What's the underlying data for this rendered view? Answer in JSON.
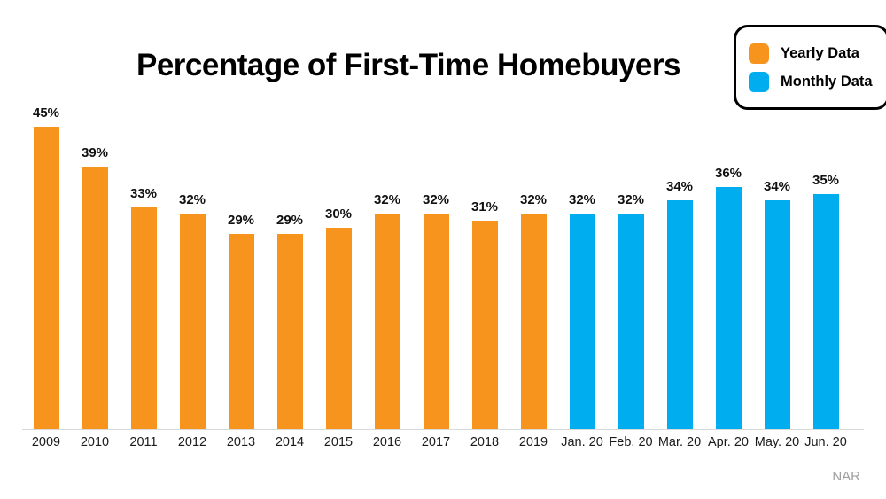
{
  "title": "Percentage of First-Time Homebuyers",
  "source_label": "NAR",
  "legend": {
    "items": [
      {
        "label": "Yearly Data",
        "color": "#F7941E"
      },
      {
        "label": "Monthly Data",
        "color": "#00AEEF"
      }
    ]
  },
  "chart_data": {
    "type": "bar",
    "title": "Percentage of First-Time Homebuyers",
    "xlabel": "",
    "ylabel": "",
    "value_suffix": "%",
    "ylim": [
      0,
      47
    ],
    "grid": false,
    "legend_position": "top-right",
    "source": "NAR",
    "series": [
      {
        "name": "Yearly Data",
        "color": "#F7941E"
      },
      {
        "name": "Monthly Data",
        "color": "#00AEEF"
      }
    ],
    "bars": [
      {
        "category": "2009",
        "value": 45,
        "series": "Yearly Data"
      },
      {
        "category": "2010",
        "value": 39,
        "series": "Yearly Data"
      },
      {
        "category": "2011",
        "value": 33,
        "series": "Yearly Data"
      },
      {
        "category": "2012",
        "value": 32,
        "series": "Yearly Data"
      },
      {
        "category": "2013",
        "value": 29,
        "series": "Yearly Data"
      },
      {
        "category": "2014",
        "value": 29,
        "series": "Yearly Data"
      },
      {
        "category": "2015",
        "value": 30,
        "series": "Yearly Data"
      },
      {
        "category": "2016",
        "value": 32,
        "series": "Yearly Data"
      },
      {
        "category": "2017",
        "value": 32,
        "series": "Yearly Data"
      },
      {
        "category": "2018",
        "value": 31,
        "series": "Yearly Data"
      },
      {
        "category": "2019",
        "value": 32,
        "series": "Yearly Data"
      },
      {
        "category": "Jan. 20",
        "value": 32,
        "series": "Monthly Data"
      },
      {
        "category": "Feb. 20",
        "value": 32,
        "series": "Monthly Data"
      },
      {
        "category": "Mar. 20",
        "value": 34,
        "series": "Monthly Data"
      },
      {
        "category": "Apr. 20",
        "value": 36,
        "series": "Monthly Data"
      },
      {
        "category": "May. 20",
        "value": 34,
        "series": "Monthly Data"
      },
      {
        "category": "Jun. 20",
        "value": 35,
        "series": "Monthly Data"
      }
    ]
  }
}
